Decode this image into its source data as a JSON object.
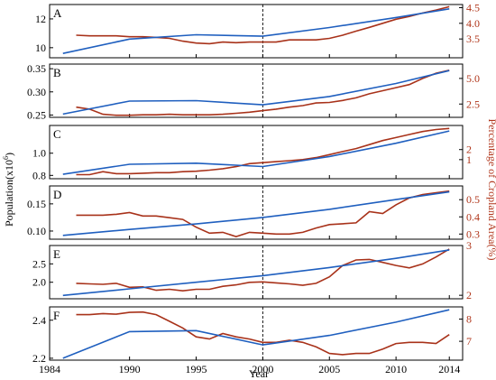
{
  "chart_data": {
    "type": "line",
    "xlabel": "Year",
    "ylabel_left": "Population(x10^6)",
    "ylabel_right": "Percentage of Cropland Area(%)",
    "x_ticks": [
      1984,
      1990,
      1995,
      2000,
      2005,
      2010,
      2014
    ],
    "xlim": [
      1984,
      2015
    ],
    "marker_year": 2000,
    "panels": [
      {
        "label": "A",
        "left_ylim": [
          9.3,
          13.0
        ],
        "left_ticks": [
          "10",
          "12"
        ],
        "left_tick_values": [
          10,
          12
        ],
        "right_ylim": [
          2.9,
          4.6
        ],
        "right_ticks": [
          "3.5",
          "4.0",
          "4.5"
        ],
        "right_tick_values": [
          3.5,
          4.0,
          4.5
        ],
        "population": {
          "x": [
            1985,
            1990,
            1995,
            2000,
            2005,
            2010,
            2014
          ],
          "y": [
            9.6,
            10.6,
            10.9,
            10.8,
            11.4,
            12.1,
            12.7
          ]
        },
        "cropland": {
          "x": [
            1986,
            1987,
            1988,
            1989,
            1990,
            1991,
            1992,
            1993,
            1994,
            1995,
            1996,
            1997,
            1998,
            1999,
            2000,
            2001,
            2002,
            2003,
            2004,
            2005,
            2006,
            2007,
            2008,
            2009,
            2010,
            2011,
            2012,
            2013,
            2014
          ],
          "y": [
            3.62,
            3.6,
            3.6,
            3.6,
            3.57,
            3.57,
            3.55,
            3.52,
            3.43,
            3.37,
            3.35,
            3.4,
            3.38,
            3.4,
            3.4,
            3.4,
            3.47,
            3.47,
            3.47,
            3.52,
            3.62,
            3.75,
            3.87,
            4.0,
            4.13,
            4.22,
            4.33,
            4.42,
            4.53
          ]
        }
      },
      {
        "label": "B",
        "left_ylim": [
          0.245,
          0.36
        ],
        "left_ticks": [
          "0.25",
          "0.30",
          "0.35"
        ],
        "left_tick_values": [
          0.25,
          0.3,
          0.35
        ],
        "right_ylim": [
          1.2,
          6.4
        ],
        "right_ticks": [
          "2.5",
          "5.0"
        ],
        "right_tick_values": [
          2.5,
          5.0
        ],
        "population": {
          "x": [
            1985,
            1990,
            1995,
            2000,
            2005,
            2010,
            2014
          ],
          "y": [
            0.252,
            0.28,
            0.281,
            0.272,
            0.29,
            0.318,
            0.346
          ]
        },
        "cropland": {
          "x": [
            1986,
            1987,
            1988,
            1989,
            1990,
            1991,
            1992,
            1993,
            1994,
            1995,
            1996,
            1997,
            1998,
            1999,
            2000,
            2001,
            2002,
            2003,
            2004,
            2005,
            2006,
            2007,
            2008,
            2009,
            2010,
            2011,
            2012,
            2013,
            2014
          ],
          "y": [
            2.2,
            2.0,
            1.5,
            1.4,
            1.4,
            1.45,
            1.45,
            1.5,
            1.45,
            1.45,
            1.45,
            1.5,
            1.6,
            1.7,
            1.85,
            2.0,
            2.2,
            2.35,
            2.6,
            2.65,
            2.85,
            3.1,
            3.5,
            3.8,
            4.1,
            4.4,
            5.0,
            5.5,
            5.8
          ]
        }
      },
      {
        "label": "C",
        "left_ylim": [
          0.77,
          1.25
        ],
        "left_ticks": [
          "0.8",
          "1.0"
        ],
        "left_tick_values": [
          0.8,
          1.0
        ],
        "right_ylim": [
          -0.9,
          4.4
        ],
        "right_ticks": [
          "1",
          "2"
        ],
        "right_tick_values": [
          1,
          2
        ],
        "population": {
          "x": [
            1985,
            1990,
            1995,
            2000,
            2005,
            2010,
            2014
          ],
          "y": [
            0.81,
            0.9,
            0.91,
            0.88,
            0.97,
            1.09,
            1.2
          ]
        },
        "cropland": {
          "x": [
            1986,
            1987,
            1988,
            1989,
            1990,
            1991,
            1992,
            1993,
            1994,
            1995,
            1996,
            1997,
            1998,
            1999,
            2000,
            2001,
            2002,
            2003,
            2004,
            2005,
            2006,
            2007,
            2008,
            2009,
            2010,
            2011,
            2012,
            2013,
            2014
          ],
          "y": [
            -0.5,
            -0.5,
            -0.2,
            -0.4,
            -0.4,
            -0.35,
            -0.3,
            -0.3,
            -0.2,
            -0.15,
            -0.05,
            0.1,
            0.3,
            0.6,
            0.7,
            0.8,
            0.9,
            1.0,
            1.2,
            1.5,
            1.8,
            2.1,
            2.5,
            2.9,
            3.2,
            3.5,
            3.8,
            4.0,
            4.1
          ]
        }
      },
      {
        "label": "D",
        "left_ylim": [
          0.085,
          0.183
        ],
        "left_ticks": [
          "0.10",
          "0.15"
        ],
        "left_tick_values": [
          0.1,
          0.15
        ],
        "right_ylim": [
          0.27,
          0.58
        ],
        "right_ticks": [
          "0.3",
          "0.4",
          "0.5"
        ],
        "right_tick_values": [
          0.3,
          0.4,
          0.5
        ],
        "population": {
          "x": [
            1985,
            1990,
            1995,
            2000,
            2005,
            2010,
            2014
          ],
          "y": [
            0.092,
            0.103,
            0.113,
            0.125,
            0.14,
            0.158,
            0.172
          ]
        },
        "cropland": {
          "x": [
            1986,
            1987,
            1988,
            1989,
            1990,
            1991,
            1992,
            1993,
            1994,
            1995,
            1996,
            1997,
            1998,
            1999,
            2000,
            2001,
            2002,
            2003,
            2004,
            2005,
            2006,
            2007,
            2008,
            2009,
            2010,
            2011,
            2012,
            2013,
            2014
          ],
          "y": [
            0.41,
            0.41,
            0.41,
            0.415,
            0.425,
            0.405,
            0.405,
            0.395,
            0.385,
            0.34,
            0.305,
            0.31,
            0.285,
            0.31,
            0.305,
            0.3,
            0.3,
            0.31,
            0.335,
            0.355,
            0.36,
            0.365,
            0.43,
            0.42,
            0.47,
            0.51,
            0.53,
            0.54,
            0.55
          ]
        }
      },
      {
        "label": "E",
        "left_ylim": [
          1.55,
          3.0
        ],
        "left_ticks": [
          "2.0",
          "2.5"
        ],
        "left_tick_values": [
          2.0,
          2.5
        ],
        "right_ylim": [
          1.93,
          3.0
        ],
        "right_ticks": [
          "2",
          "3"
        ],
        "right_tick_values": [
          2,
          3
        ],
        "population": {
          "x": [
            1985,
            1990,
            1995,
            2000,
            2005,
            2010,
            2014
          ],
          "y": [
            1.64,
            1.82,
            2.0,
            2.18,
            2.4,
            2.65,
            2.88
          ]
        },
        "cropland": {
          "x": [
            1986,
            1987,
            1988,
            1989,
            1990,
            1991,
            1992,
            1993,
            1994,
            1995,
            1996,
            1997,
            1998,
            1999,
            2000,
            2001,
            2002,
            2003,
            2004,
            2005,
            2006,
            2007,
            2008,
            2009,
            2010,
            2011,
            2012,
            2013,
            2014
          ],
          "y": [
            2.24,
            2.23,
            2.22,
            2.24,
            2.16,
            2.17,
            2.1,
            2.12,
            2.09,
            2.12,
            2.12,
            2.18,
            2.21,
            2.26,
            2.27,
            2.25,
            2.23,
            2.2,
            2.24,
            2.37,
            2.6,
            2.71,
            2.72,
            2.66,
            2.6,
            2.55,
            2.63,
            2.77,
            2.93
          ]
        }
      },
      {
        "label": "F",
        "left_ylim": [
          2.19,
          2.47
        ],
        "left_ticks": [
          "2.2",
          "2.4"
        ],
        "left_tick_values": [
          2.2,
          2.4
        ],
        "right_ylim": [
          6.15,
          8.55
        ],
        "right_ticks": [
          "7",
          "8"
        ],
        "right_tick_values": [
          7,
          8
        ],
        "population": {
          "x": [
            1985,
            1990,
            1995,
            2000,
            2005,
            2010,
            2014
          ],
          "y": [
            2.2,
            2.34,
            2.345,
            2.27,
            2.32,
            2.39,
            2.455
          ]
        },
        "cropland": {
          "x": [
            1986,
            1987,
            1988,
            1989,
            1990,
            1991,
            1992,
            1993,
            1994,
            1995,
            1996,
            1997,
            1998,
            1999,
            2000,
            2001,
            2002,
            2003,
            2004,
            2005,
            2006,
            2007,
            2008,
            2009,
            2010,
            2011,
            2012,
            2013,
            2014
          ],
          "y": [
            8.2,
            8.2,
            8.25,
            8.22,
            8.3,
            8.32,
            8.2,
            7.9,
            7.6,
            7.2,
            7.1,
            7.35,
            7.2,
            7.1,
            6.95,
            6.95,
            7.05,
            6.95,
            6.75,
            6.45,
            6.4,
            6.45,
            6.45,
            6.65,
            6.9,
            6.95,
            6.95,
            6.9,
            7.3
          ]
        }
      }
    ]
  }
}
